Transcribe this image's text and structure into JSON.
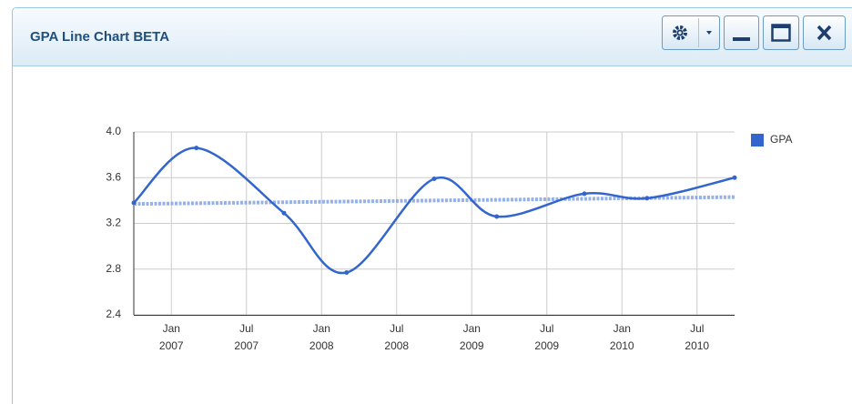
{
  "widget": {
    "title": "GPA Line Chart BETA"
  },
  "chart_data": {
    "type": "line",
    "x": [
      "2006-10",
      "2007-03",
      "2007-10",
      "2008-03",
      "2008-10",
      "2009-03",
      "2009-10",
      "2010-03",
      "2010-10"
    ],
    "series": [
      {
        "name": "GPA",
        "color": "#3366cc",
        "values": [
          3.38,
          3.86,
          3.29,
          2.77,
          3.59,
          3.26,
          3.46,
          3.42,
          3.6
        ]
      }
    ],
    "trendline": {
      "x": [
        "2006-10",
        "2010-10"
      ],
      "values": [
        3.37,
        3.43
      ],
      "color": "#7b9de3"
    },
    "xlim": [
      "2006-10",
      "2010-10"
    ],
    "xticks": [
      {
        "value": "2007-01",
        "label": "Jan 2007"
      },
      {
        "value": "2007-07",
        "label": "Jul 2007"
      },
      {
        "value": "2008-01",
        "label": "Jan 2008"
      },
      {
        "value": "2008-07",
        "label": "Jul 2008"
      },
      {
        "value": "2009-01",
        "label": "Jan 2009"
      },
      {
        "value": "2009-07",
        "label": "Jul 2009"
      },
      {
        "value": "2010-01",
        "label": "Jan 2010"
      },
      {
        "value": "2010-07",
        "label": "Jul 2010"
      }
    ],
    "ylim": [
      2.4,
      4.0
    ],
    "yticks": [
      2.4,
      2.8,
      3.2,
      3.6,
      {
        "value": 4.0,
        "label": "4.0"
      }
    ],
    "grid": true,
    "legend": "right"
  }
}
